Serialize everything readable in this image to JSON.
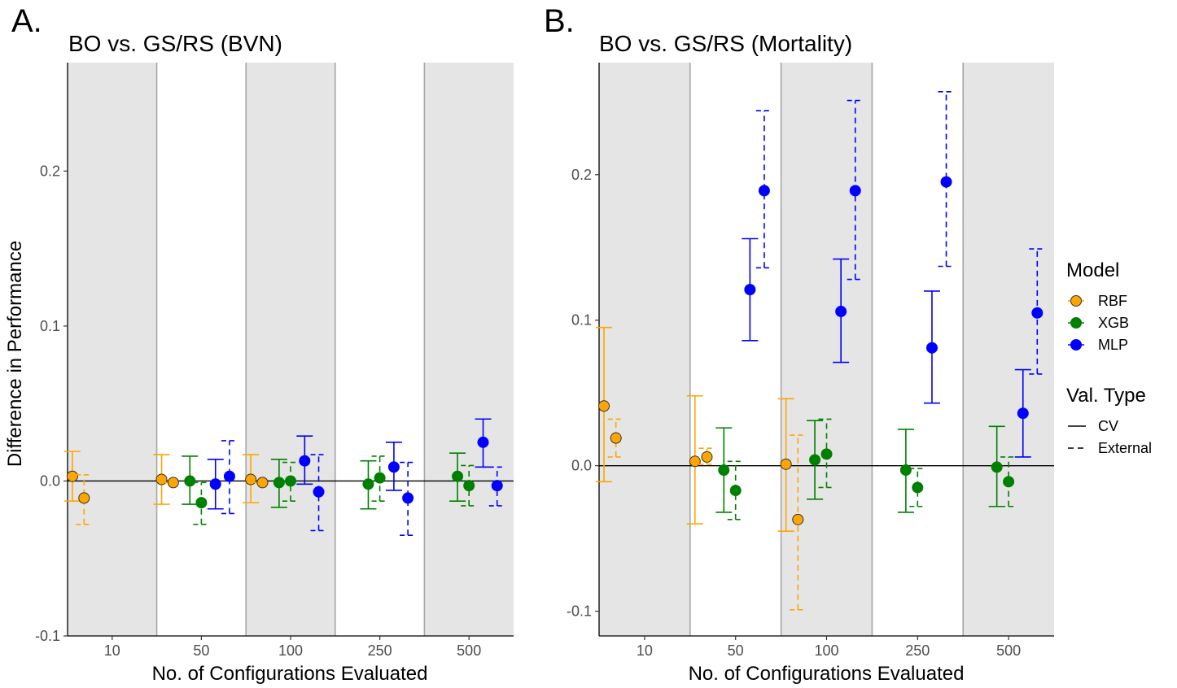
{
  "figure": {
    "y_axis_title": "Difference in Performance",
    "legend": {
      "model_title": "Model",
      "models": [
        {
          "name": "RBF",
          "color": "#FFA500"
        },
        {
          "name": "XGB",
          "color": "#008000"
        },
        {
          "name": "MLP",
          "color": "#0000FF"
        }
      ],
      "val_title": "Val. Type",
      "val_types": [
        {
          "name": "CV",
          "dash": "solid"
        },
        {
          "name": "External",
          "dash": "dashed"
        }
      ]
    }
  },
  "chart_data": [
    {
      "type": "scatter",
      "panel_label": "A.",
      "title": "BO vs. GS/RS (BVN)",
      "xlabel": "No. of Configurations Evaluated",
      "ylabel": "Difference in Performance",
      "categories": [
        "10",
        "50",
        "100",
        "250",
        "500"
      ],
      "ylim": [
        -0.1,
        0.27
      ],
      "yticks": [
        -0.1,
        0.0,
        0.1,
        0.2
      ],
      "ytick_labels": [
        "-0.1",
        "0.0",
        "0.1",
        "0.2"
      ],
      "shaded_categories": [
        "10",
        "100",
        "500"
      ],
      "reference_line": 0.0,
      "points": [
        {
          "category": "10",
          "model": "RBF",
          "val": "CV",
          "y": 0.003,
          "lo": -0.013,
          "hi": 0.019
        },
        {
          "category": "10",
          "model": "RBF",
          "val": "External",
          "y": -0.011,
          "lo": -0.028,
          "hi": 0.004
        },
        {
          "category": "50",
          "model": "RBF",
          "val": "CV",
          "y": 0.001,
          "lo": -0.015,
          "hi": 0.017
        },
        {
          "category": "50",
          "model": "RBF",
          "val": "External",
          "y": -0.001,
          "lo": -0.001,
          "hi": -0.001
        },
        {
          "category": "50",
          "model": "XGB",
          "val": "CV",
          "y": 0.0,
          "lo": -0.015,
          "hi": 0.016
        },
        {
          "category": "50",
          "model": "XGB",
          "val": "External",
          "y": -0.014,
          "lo": -0.028,
          "hi": -0.001
        },
        {
          "category": "50",
          "model": "MLP",
          "val": "CV",
          "y": -0.002,
          "lo": -0.018,
          "hi": 0.014
        },
        {
          "category": "50",
          "model": "MLP",
          "val": "External",
          "y": 0.003,
          "lo": -0.021,
          "hi": 0.026
        },
        {
          "category": "100",
          "model": "RBF",
          "val": "CV",
          "y": 0.001,
          "lo": -0.014,
          "hi": 0.017
        },
        {
          "category": "100",
          "model": "RBF",
          "val": "External",
          "y": -0.001,
          "lo": -0.001,
          "hi": -0.001
        },
        {
          "category": "100",
          "model": "XGB",
          "val": "CV",
          "y": -0.001,
          "lo": -0.017,
          "hi": 0.014
        },
        {
          "category": "100",
          "model": "XGB",
          "val": "External",
          "y": 0.0,
          "lo": -0.013,
          "hi": 0.012
        },
        {
          "category": "100",
          "model": "MLP",
          "val": "CV",
          "y": 0.013,
          "lo": -0.002,
          "hi": 0.029
        },
        {
          "category": "100",
          "model": "MLP",
          "val": "External",
          "y": -0.007,
          "lo": -0.032,
          "hi": 0.017
        },
        {
          "category": "250",
          "model": "XGB",
          "val": "CV",
          "y": -0.002,
          "lo": -0.018,
          "hi": 0.013
        },
        {
          "category": "250",
          "model": "XGB",
          "val": "External",
          "y": 0.002,
          "lo": -0.013,
          "hi": 0.016
        },
        {
          "category": "250",
          "model": "MLP",
          "val": "CV",
          "y": 0.009,
          "lo": -0.006,
          "hi": 0.025
        },
        {
          "category": "250",
          "model": "MLP",
          "val": "External",
          "y": -0.011,
          "lo": -0.035,
          "hi": 0.012
        },
        {
          "category": "500",
          "model": "XGB",
          "val": "CV",
          "y": 0.003,
          "lo": -0.013,
          "hi": 0.018
        },
        {
          "category": "500",
          "model": "XGB",
          "val": "External",
          "y": -0.003,
          "lo": -0.016,
          "hi": 0.01
        },
        {
          "category": "500",
          "model": "MLP",
          "val": "CV",
          "y": 0.025,
          "lo": 0.009,
          "hi": 0.04
        },
        {
          "category": "500",
          "model": "MLP",
          "val": "External",
          "y": -0.003,
          "lo": -0.016,
          "hi": 0.009
        }
      ]
    },
    {
      "type": "scatter",
      "panel_label": "B.",
      "title": "BO vs. GS/RS (Mortality)",
      "xlabel": "No. of Configurations Evaluated",
      "ylabel": "",
      "categories": [
        "10",
        "50",
        "100",
        "250",
        "500"
      ],
      "ylim": [
        -0.117,
        0.277
      ],
      "yticks": [
        -0.1,
        0.0,
        0.1,
        0.2
      ],
      "ytick_labels": [
        "-0.1",
        "0.0",
        "0.1",
        "0.2"
      ],
      "shaded_categories": [
        "10",
        "100",
        "500"
      ],
      "reference_line": 0.0,
      "points": [
        {
          "category": "10",
          "model": "RBF",
          "val": "CV",
          "y": 0.041,
          "lo": -0.011,
          "hi": 0.095
        },
        {
          "category": "10",
          "model": "RBF",
          "val": "External",
          "y": 0.019,
          "lo": 0.006,
          "hi": 0.032
        },
        {
          "category": "50",
          "model": "RBF",
          "val": "CV",
          "y": 0.003,
          "lo": -0.04,
          "hi": 0.048
        },
        {
          "category": "50",
          "model": "RBF",
          "val": "External",
          "y": 0.006,
          "lo": 0.001,
          "hi": 0.012
        },
        {
          "category": "50",
          "model": "XGB",
          "val": "CV",
          "y": -0.003,
          "lo": -0.032,
          "hi": 0.026
        },
        {
          "category": "50",
          "model": "XGB",
          "val": "External",
          "y": -0.017,
          "lo": -0.037,
          "hi": 0.003
        },
        {
          "category": "50",
          "model": "MLP",
          "val": "CV",
          "y": 0.121,
          "lo": 0.086,
          "hi": 0.156
        },
        {
          "category": "50",
          "model": "MLP",
          "val": "External",
          "y": 0.189,
          "lo": 0.136,
          "hi": 0.244
        },
        {
          "category": "100",
          "model": "RBF",
          "val": "CV",
          "y": 0.001,
          "lo": -0.045,
          "hi": 0.046
        },
        {
          "category": "100",
          "model": "RBF",
          "val": "External",
          "y": -0.037,
          "lo": -0.099,
          "hi": 0.021
        },
        {
          "category": "100",
          "model": "XGB",
          "val": "CV",
          "y": 0.004,
          "lo": -0.023,
          "hi": 0.031
        },
        {
          "category": "100",
          "model": "XGB",
          "val": "External",
          "y": 0.008,
          "lo": -0.015,
          "hi": 0.032
        },
        {
          "category": "100",
          "model": "MLP",
          "val": "CV",
          "y": 0.106,
          "lo": 0.071,
          "hi": 0.142
        },
        {
          "category": "100",
          "model": "MLP",
          "val": "External",
          "y": 0.189,
          "lo": 0.128,
          "hi": 0.251
        },
        {
          "category": "250",
          "model": "XGB",
          "val": "CV",
          "y": -0.003,
          "lo": -0.032,
          "hi": 0.025
        },
        {
          "category": "250",
          "model": "XGB",
          "val": "External",
          "y": -0.015,
          "lo": -0.028,
          "hi": -0.002
        },
        {
          "category": "250",
          "model": "MLP",
          "val": "CV",
          "y": 0.081,
          "lo": 0.043,
          "hi": 0.12
        },
        {
          "category": "250",
          "model": "MLP",
          "val": "External",
          "y": 0.195,
          "lo": 0.137,
          "hi": 0.257
        },
        {
          "category": "500",
          "model": "XGB",
          "val": "CV",
          "y": -0.001,
          "lo": -0.028,
          "hi": 0.027
        },
        {
          "category": "500",
          "model": "XGB",
          "val": "External",
          "y": -0.011,
          "lo": -0.028,
          "hi": 0.006
        },
        {
          "category": "500",
          "model": "MLP",
          "val": "CV",
          "y": 0.036,
          "lo": 0.006,
          "hi": 0.066
        },
        {
          "category": "500",
          "model": "MLP",
          "val": "External",
          "y": 0.105,
          "lo": 0.063,
          "hi": 0.149
        }
      ]
    }
  ]
}
